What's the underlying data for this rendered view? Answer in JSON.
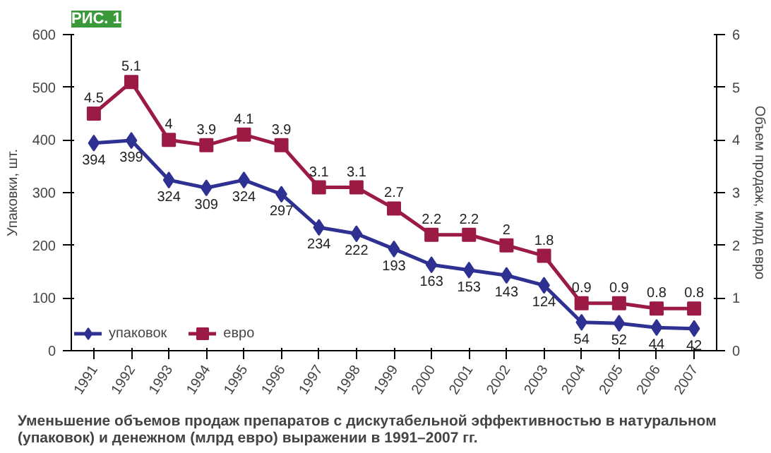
{
  "chart_data": {
    "type": "line",
    "title": "РИС. 1",
    "categories": [
      "1991",
      "1992",
      "1993",
      "1994",
      "1995",
      "1996",
      "1997",
      "1998",
      "1999",
      "2000",
      "2001",
      "2002",
      "2003",
      "2004",
      "2005",
      "2006",
      "2007"
    ],
    "series": [
      {
        "name": "упаковок",
        "color": "#2e3192",
        "marker": "diamond",
        "values": [
          394,
          399,
          324,
          309,
          324,
          297,
          234,
          222,
          193,
          163,
          153,
          143,
          124,
          54,
          52,
          44,
          42
        ]
      },
      {
        "name": "евро",
        "color": "#9b1b45",
        "marker": "square",
        "axis": "y2",
        "values": [
          4.5,
          5.1,
          4,
          3.9,
          4.1,
          3.9,
          3.1,
          3.1,
          2.7,
          2.2,
          2.2,
          2,
          1.8,
          0.9,
          0.9,
          0.8,
          0.8
        ]
      }
    ],
    "ylabel": "Упаковки, шт.",
    "y2label": "Объем продаж, млрд евро",
    "ylim": [
      0,
      600
    ],
    "yticks": [
      0,
      100,
      200,
      300,
      400,
      500,
      600
    ],
    "y2lim": [
      0,
      6
    ],
    "y2ticks": [
      0,
      1,
      2,
      3,
      4,
      5,
      6
    ],
    "data_labels": true,
    "legend": "bottom left",
    "grid": false,
    "line_style": "solid",
    "annotations": [
      "Уменьшение объемов продаж препаратов с дискутабельной эффективностью в натуральном (упаковок) и денежном (млрд евро) выражении в 1991–2007 гг."
    ]
  }
}
